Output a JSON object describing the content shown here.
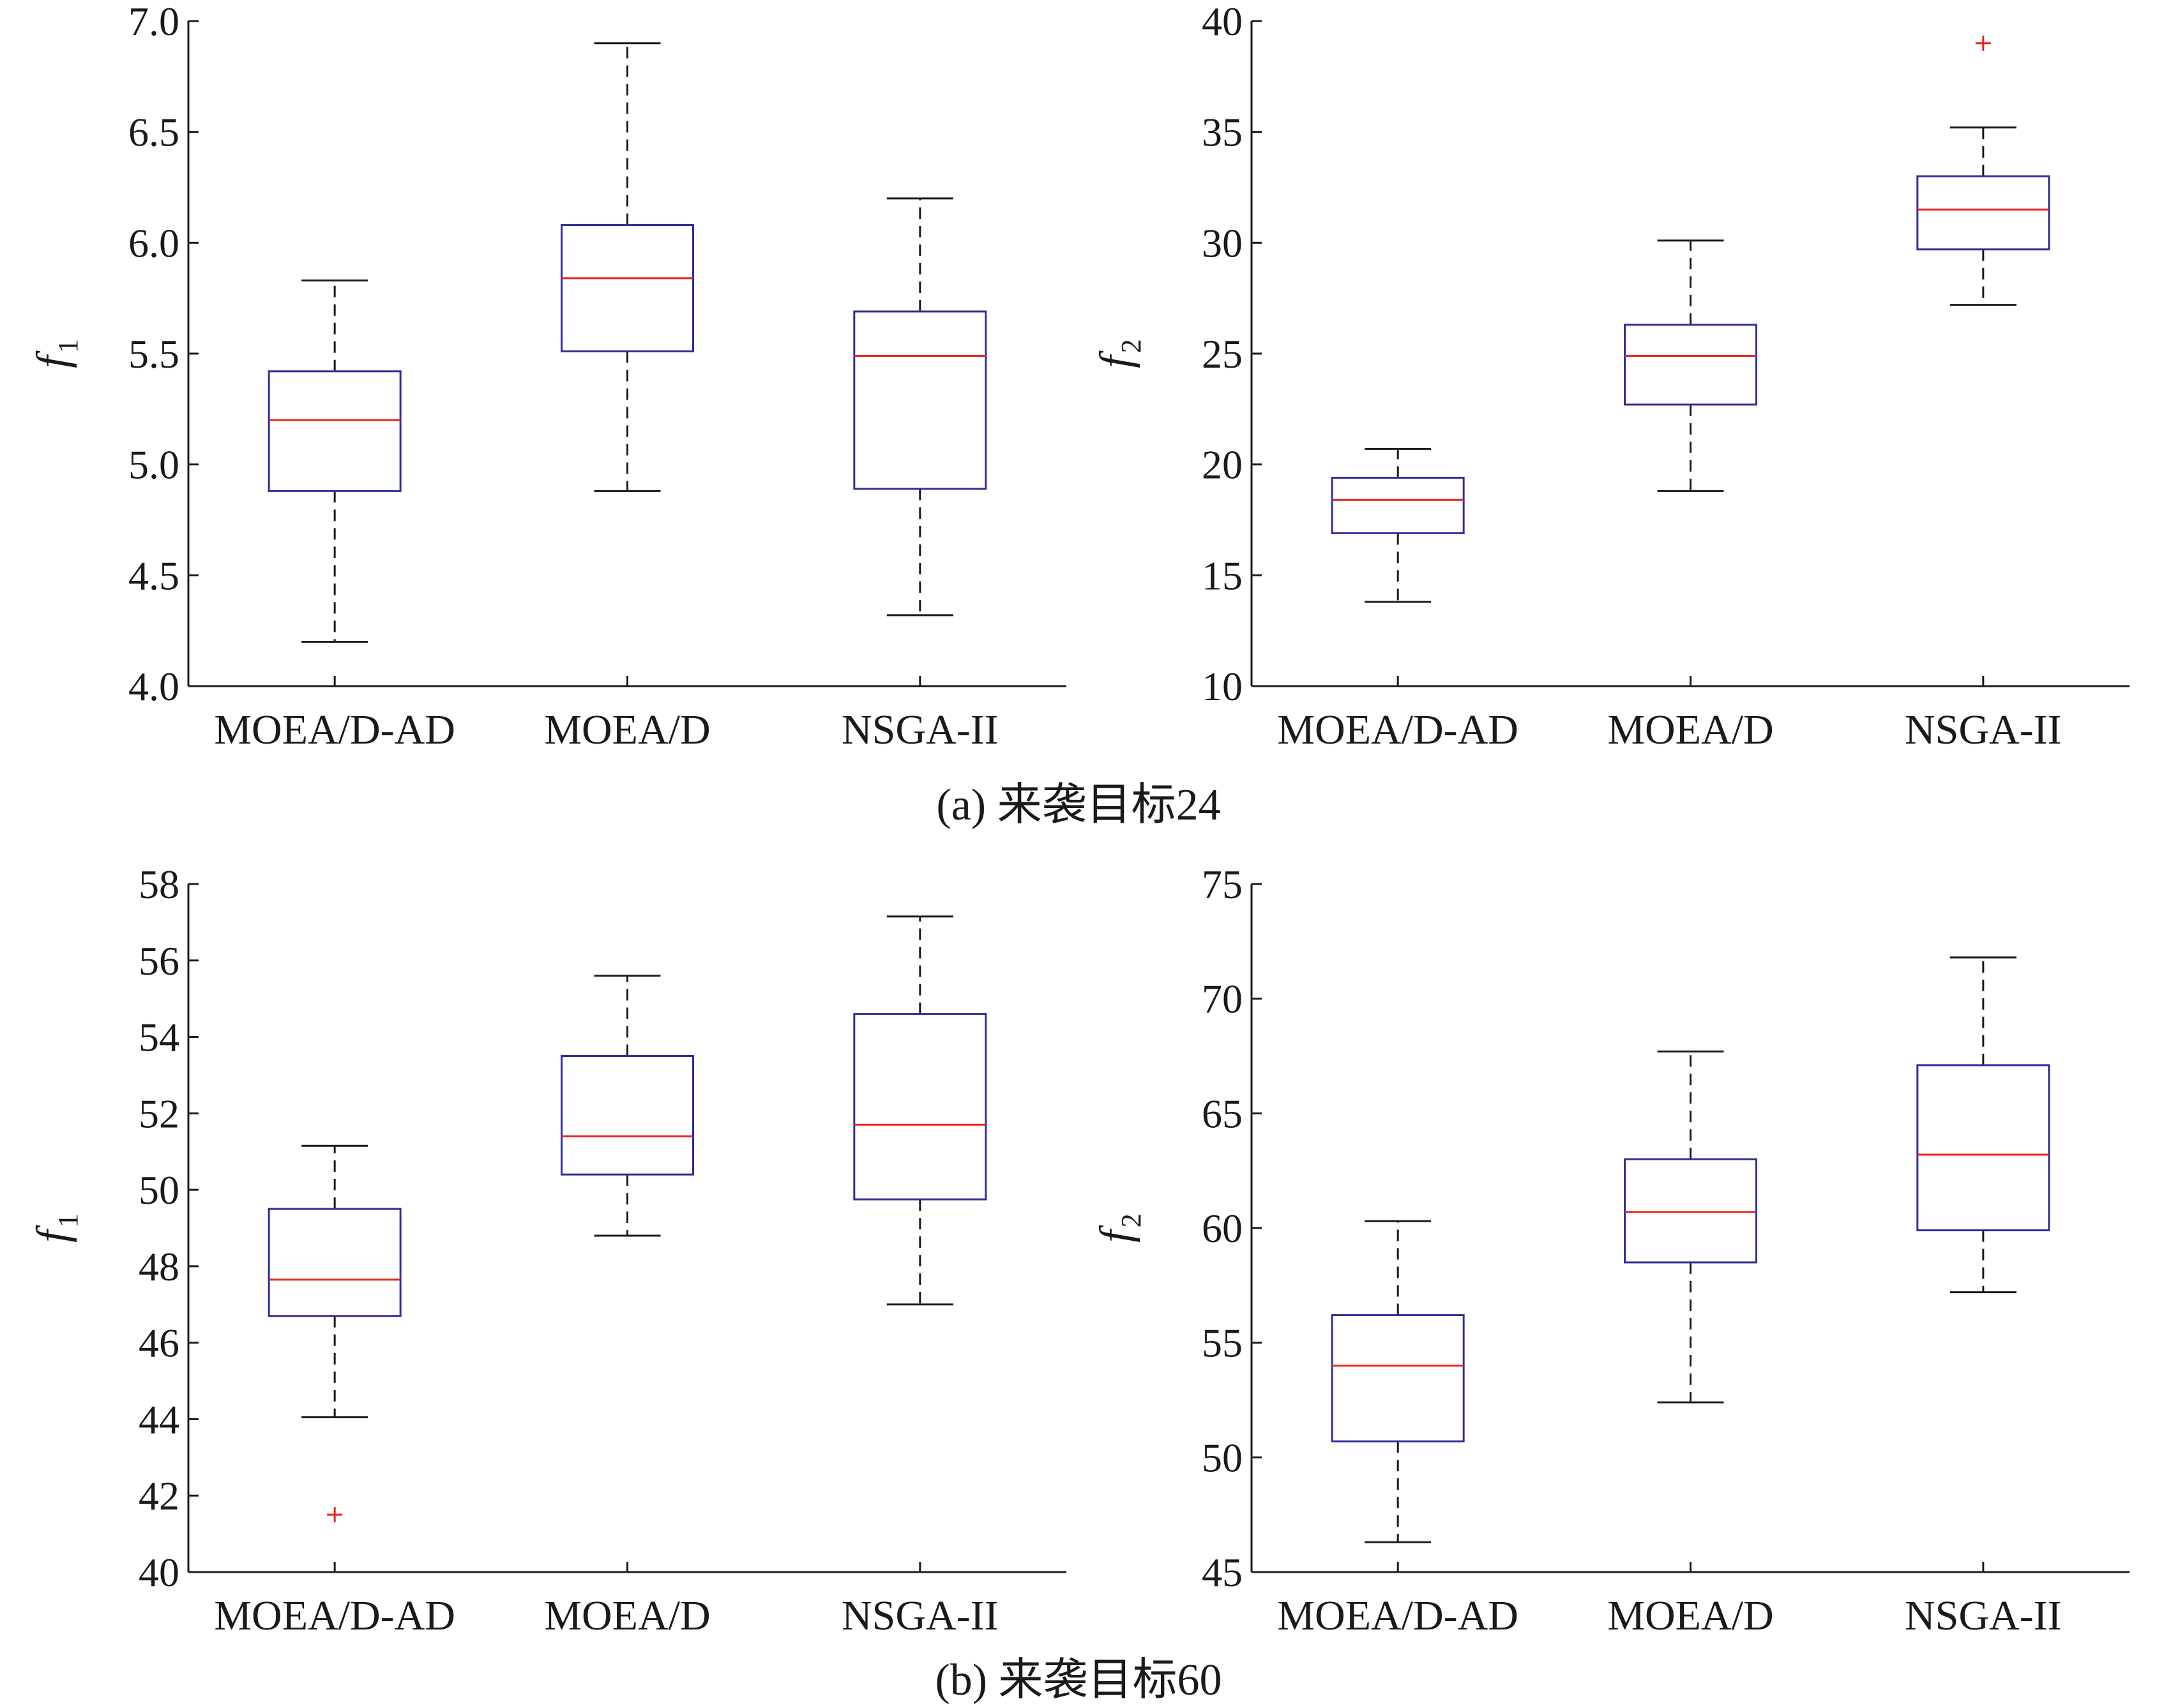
{
  "colors": {
    "box": "#2e2e9a",
    "median": "#e8251f",
    "whisker": "#1a1a1a",
    "outlier": "#e8251f",
    "axis": "#1a1a1a"
  },
  "captions": {
    "a": "(a) 来袭目标24",
    "b": "(b) 来袭目标60"
  },
  "chart_data": [
    {
      "type": "box",
      "panel": "a",
      "categories": [
        "MOEA/D-AD",
        "MOEA/D",
        "NSGA-II"
      ],
      "ylabel": "f",
      "ylabel_sub": "1",
      "ylim": [
        4.0,
        7.0
      ],
      "yticks": [
        4.0,
        4.5,
        5.0,
        5.5,
        6.0,
        6.5,
        7.0
      ],
      "ytick_labels": [
        "4.0",
        "4.5",
        "5.0",
        "5.5",
        "6.0",
        "6.5",
        "7.0"
      ],
      "boxes": [
        {
          "min": 4.2,
          "q1": 4.88,
          "median": 5.2,
          "q3": 5.42,
          "max": 5.83,
          "outliers": []
        },
        {
          "min": 4.88,
          "q1": 5.51,
          "median": 5.84,
          "q3": 6.08,
          "max": 6.9,
          "outliers": []
        },
        {
          "min": 4.32,
          "q1": 4.89,
          "median": 5.49,
          "q3": 5.69,
          "max": 6.2,
          "outliers": []
        }
      ]
    },
    {
      "type": "box",
      "panel": "a",
      "categories": [
        "MOEA/D-AD",
        "MOEA/D",
        "NSGA-II"
      ],
      "ylabel": "f",
      "ylabel_sub": "2",
      "ylim": [
        10,
        40
      ],
      "yticks": [
        10,
        15,
        20,
        25,
        30,
        35,
        40
      ],
      "ytick_labels": [
        "10",
        "15",
        "20",
        "25",
        "30",
        "35",
        "40"
      ],
      "boxes": [
        {
          "min": 13.8,
          "q1": 16.9,
          "median": 18.4,
          "q3": 19.4,
          "max": 20.7,
          "outliers": []
        },
        {
          "min": 18.8,
          "q1": 22.7,
          "median": 24.9,
          "q3": 26.3,
          "max": 30.1,
          "outliers": []
        },
        {
          "min": 27.2,
          "q1": 29.7,
          "median": 31.5,
          "q3": 33.0,
          "max": 35.2,
          "outliers": [
            39.0
          ]
        }
      ]
    },
    {
      "type": "box",
      "panel": "b",
      "categories": [
        "MOEA/D-AD",
        "MOEA/D",
        "NSGA-II"
      ],
      "ylabel": "f",
      "ylabel_sub": "1",
      "ylim": [
        40,
        58
      ],
      "yticks": [
        40,
        42,
        44,
        46,
        48,
        50,
        52,
        54,
        56,
        58
      ],
      "ytick_labels": [
        "40",
        "42",
        "44",
        "46",
        "48",
        "50",
        "52",
        "54",
        "56",
        "58"
      ],
      "boxes": [
        {
          "min": 44.05,
          "q1": 46.7,
          "median": 47.65,
          "q3": 49.5,
          "max": 51.15,
          "outliers": [
            41.5
          ]
        },
        {
          "min": 48.8,
          "q1": 50.4,
          "median": 51.4,
          "q3": 53.5,
          "max": 55.6,
          "outliers": []
        },
        {
          "min": 47.0,
          "q1": 49.75,
          "median": 51.7,
          "q3": 54.6,
          "max": 57.15,
          "outliers": []
        }
      ]
    },
    {
      "type": "box",
      "panel": "b",
      "categories": [
        "MOEA/D-AD",
        "MOEA/D",
        "NSGA-II"
      ],
      "ylabel": "f",
      "ylabel_sub": "2",
      "ylim": [
        45,
        75
      ],
      "yticks": [
        45,
        50,
        55,
        60,
        65,
        70,
        75
      ],
      "ytick_labels": [
        "45",
        "50",
        "55",
        "60",
        "65",
        "70",
        "75"
      ],
      "boxes": [
        {
          "min": 46.3,
          "q1": 50.7,
          "median": 54.0,
          "q3": 56.2,
          "max": 60.3,
          "outliers": []
        },
        {
          "min": 52.4,
          "q1": 58.5,
          "median": 60.7,
          "q3": 63.0,
          "max": 67.7,
          "outliers": []
        },
        {
          "min": 57.2,
          "q1": 59.9,
          "median": 63.2,
          "q3": 67.1,
          "max": 71.8,
          "outliers": []
        }
      ]
    }
  ]
}
